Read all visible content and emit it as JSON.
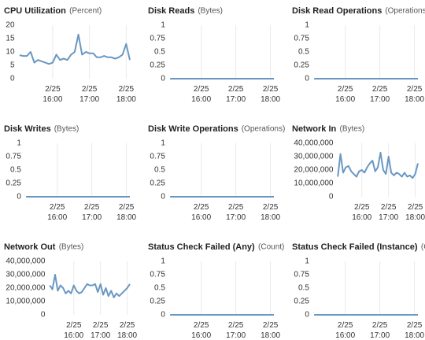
{
  "chart_data": [
    {
      "type": "line",
      "title": "CPU Utilization",
      "unit": "(Percent)",
      "color": "#6a97c2",
      "grid": "x",
      "x": [
        15.1,
        15.2,
        15.3,
        15.4,
        15.5,
        15.6,
        15.7,
        15.8,
        15.9,
        16.0,
        16.1,
        16.2,
        16.3,
        16.4,
        16.5,
        16.6,
        16.7,
        16.8,
        16.9,
        17.0,
        17.1,
        17.2,
        17.3,
        17.4,
        17.5,
        17.6,
        17.7,
        17.8,
        17.9,
        18.0,
        18.1
      ],
      "values": [
        8.8,
        8.5,
        8.5,
        10,
        6,
        7,
        6.5,
        6,
        5.5,
        6,
        9,
        7,
        7.5,
        7,
        9,
        10,
        16.5,
        9,
        10,
        9.5,
        9.5,
        8,
        8,
        8.5,
        8,
        8,
        7.5,
        8,
        9,
        13,
        7
      ],
      "xlim": [
        15.05,
        18.1
      ],
      "xticks": [
        {
          "value": 16,
          "label": "2/25 16:00"
        },
        {
          "value": 17,
          "label": "2/25 17:00"
        },
        {
          "value": 18,
          "label": "2/25 18:00"
        }
      ],
      "ylim": [
        0,
        20
      ],
      "yticks": [
        0,
        5,
        10,
        15,
        20
      ]
    },
    {
      "type": "line",
      "title": "Disk Reads",
      "unit": "(Bytes)",
      "color": "#6a97c2",
      "grid": "x",
      "x": [
        15.1,
        18.1
      ],
      "values": [
        0,
        0
      ],
      "xlim": [
        15.05,
        18.1
      ],
      "xticks": [
        {
          "value": 16,
          "label": "2/25 16:00"
        },
        {
          "value": 17,
          "label": "2/25 17:00"
        },
        {
          "value": 18,
          "label": "2/25 18:00"
        }
      ],
      "ylim": [
        0,
        1
      ],
      "yticks": [
        0,
        0.25,
        0.5,
        0.75,
        1
      ]
    },
    {
      "type": "line",
      "title": "Disk Read Operations",
      "unit": "(Operations)",
      "color": "#6a97c2",
      "grid": "x",
      "x": [
        15.1,
        18.1
      ],
      "values": [
        0,
        0
      ],
      "xlim": [
        15.05,
        18.1
      ],
      "xticks": [
        {
          "value": 16,
          "label": "2/25 16:00"
        },
        {
          "value": 17,
          "label": "2/25 17:00"
        },
        {
          "value": 18,
          "label": "2/25 18:00"
        }
      ],
      "ylim": [
        0,
        1
      ],
      "yticks": [
        0,
        0.25,
        0.5,
        0.75,
        1
      ]
    },
    {
      "type": "line",
      "title": "Disk Writes",
      "unit": "(Bytes)",
      "color": "#6a97c2",
      "grid": "x",
      "x": [
        15.1,
        18.1
      ],
      "values": [
        0,
        0
      ],
      "xlim": [
        15.05,
        18.1
      ],
      "xticks": [
        {
          "value": 16,
          "label": "2/25 16:00"
        },
        {
          "value": 17,
          "label": "2/25 17:00"
        },
        {
          "value": 18,
          "label": "2/25 18:00"
        }
      ],
      "ylim": [
        0,
        1
      ],
      "yticks": [
        0,
        0.25,
        0.5,
        0.75,
        1
      ]
    },
    {
      "type": "line",
      "title": "Disk Write Operations",
      "unit": "(Operations)",
      "color": "#6a97c2",
      "grid": "x",
      "x": [
        15.1,
        18.1
      ],
      "values": [
        0,
        0
      ],
      "xlim": [
        15.05,
        18.1
      ],
      "xticks": [
        {
          "value": 16,
          "label": "2/25 16:00"
        },
        {
          "value": 17,
          "label": "2/25 17:00"
        },
        {
          "value": 18,
          "label": "2/25 18:00"
        }
      ],
      "ylim": [
        0,
        1
      ],
      "yticks": [
        0,
        0.25,
        0.5,
        0.75,
        1
      ]
    },
    {
      "type": "line",
      "title": "Network In",
      "unit": "(Bytes)",
      "color": "#6a97c2",
      "grid": "x",
      "x": [
        15.1,
        15.2,
        15.3,
        15.4,
        15.5,
        15.6,
        15.7,
        15.8,
        15.9,
        16.0,
        16.1,
        16.2,
        16.3,
        16.4,
        16.5,
        16.6,
        16.7,
        16.8,
        16.9,
        17.0,
        17.1,
        17.2,
        17.3,
        17.4,
        17.5,
        17.6,
        17.7,
        17.8,
        17.9,
        18.0,
        18.1
      ],
      "values": [
        15000000,
        32000000,
        18000000,
        22000000,
        23000000,
        19000000,
        17000000,
        15000000,
        19000000,
        20000000,
        18000000,
        22000000,
        25000000,
        27000000,
        19000000,
        22000000,
        33000000,
        20000000,
        17000000,
        30000000,
        18000000,
        16000000,
        18000000,
        17000000,
        15000000,
        18000000,
        15000000,
        16000000,
        14000000,
        17000000,
        25000000
      ],
      "xlim": [
        15.05,
        18.1
      ],
      "xticks": [
        {
          "value": 16,
          "label": "2/25 16:00"
        },
        {
          "value": 17,
          "label": "2/25 17:00"
        },
        {
          "value": 18,
          "label": "2/25 18:00"
        }
      ],
      "ylim": [
        0,
        40000000
      ],
      "yticks": [
        0,
        {
          "value": 10000000,
          "label": "10,000,000"
        },
        {
          "value": 20000000,
          "label": "20,000,000"
        },
        {
          "value": 30000000,
          "label": "30,000,000"
        },
        {
          "value": 40000000,
          "label": "40,000,000"
        }
      ]
    },
    {
      "type": "line",
      "title": "Network Out",
      "unit": "(Bytes)",
      "color": "#6a97c2",
      "grid": "x",
      "x": [
        15.1,
        15.2,
        15.3,
        15.4,
        15.5,
        15.6,
        15.7,
        15.8,
        15.9,
        16.0,
        16.1,
        16.2,
        16.3,
        16.4,
        16.5,
        16.6,
        16.7,
        16.8,
        16.9,
        17.0,
        17.1,
        17.2,
        17.3,
        17.4,
        17.5,
        17.6,
        17.7,
        17.8,
        17.9,
        18.0,
        18.1
      ],
      "values": [
        22000000,
        19000000,
        30000000,
        18000000,
        22000000,
        20000000,
        16000000,
        18000000,
        16000000,
        22000000,
        18000000,
        16000000,
        17000000,
        20000000,
        23000000,
        22000000,
        22000000,
        23000000,
        17000000,
        23000000,
        15000000,
        20000000,
        14000000,
        18000000,
        13000000,
        16000000,
        14000000,
        16000000,
        18000000,
        20000000,
        23000000
      ],
      "xlim": [
        15.05,
        18.1
      ],
      "xticks": [
        {
          "value": 16,
          "label": "2/25 16:00"
        },
        {
          "value": 17,
          "label": "2/25 17:00"
        },
        {
          "value": 18,
          "label": "2/25 18:00"
        }
      ],
      "ylim": [
        0,
        40000000
      ],
      "yticks": [
        0,
        {
          "value": 10000000,
          "label": "10,000,000"
        },
        {
          "value": 20000000,
          "label": "20,000,000"
        },
        {
          "value": 30000000,
          "label": "30,000,000"
        },
        {
          "value": 40000000,
          "label": "40,000,000"
        }
      ]
    },
    {
      "type": "line",
      "title": "Status Check Failed (Any)",
      "unit": "(Count)",
      "color": "#6a97c2",
      "grid": "x",
      "x": [
        15.1,
        18.1
      ],
      "values": [
        0,
        0
      ],
      "xlim": [
        15.05,
        18.1
      ],
      "xticks": [
        {
          "value": 16,
          "label": "2/25 16:00"
        },
        {
          "value": 17,
          "label": "2/25 17:00"
        },
        {
          "value": 18,
          "label": "2/25 18:00"
        }
      ],
      "ylim": [
        0,
        1
      ],
      "yticks": [
        0,
        0.25,
        0.5,
        0.75,
        1
      ]
    },
    {
      "type": "line",
      "title": "Status Check Failed (Instance)",
      "unit": "(Count)",
      "color": "#6a97c2",
      "grid": "x",
      "x": [
        15.1,
        18.1
      ],
      "values": [
        0,
        0
      ],
      "xlim": [
        15.05,
        18.1
      ],
      "xticks": [
        {
          "value": 16,
          "label": "2/25 16:00"
        },
        {
          "value": 17,
          "label": "2/25 17:00"
        },
        {
          "value": 18,
          "label": "2/25 18:00"
        }
      ],
      "ylim": [
        0,
        1
      ],
      "yticks": [
        0,
        0.25,
        0.5,
        0.75,
        1
      ]
    }
  ]
}
